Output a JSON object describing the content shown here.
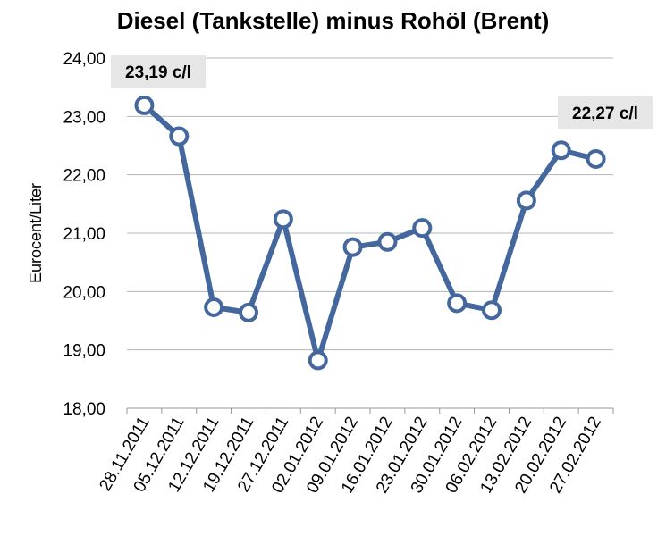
{
  "chart_data": {
    "type": "line",
    "title": "Diesel (Tankstelle) minus Rohöl (Brent)",
    "xlabel": "",
    "ylabel": "Eurocent/Liter",
    "ylim": [
      18,
      24
    ],
    "yticks": [
      "18,00",
      "19,00",
      "20,00",
      "21,00",
      "22,00",
      "23,00",
      "24,00"
    ],
    "categories": [
      "28.11.2011",
      "05.12.2011",
      "12.12.2011",
      "19.12.2011",
      "27.12.2011",
      "02.01.2012",
      "09.01.2012",
      "16.01.2012",
      "23.01.2012",
      "30.01.2012",
      "06.02.2012",
      "13.02.2012",
      "20.02.2012",
      "27.02.2012"
    ],
    "series": [
      {
        "values": [
          23.19,
          22.66,
          19.73,
          19.64,
          21.24,
          18.82,
          20.76,
          20.85,
          21.09,
          19.8,
          19.68,
          21.56,
          22.42,
          22.27
        ]
      }
    ],
    "annotations": [
      {
        "index": 0,
        "text": "23,19 c/l"
      },
      {
        "index": 13,
        "text": "22,27 c/l"
      }
    ],
    "grid": true,
    "line_color": "#44689e",
    "callout_bg": "#e6e6e6"
  }
}
